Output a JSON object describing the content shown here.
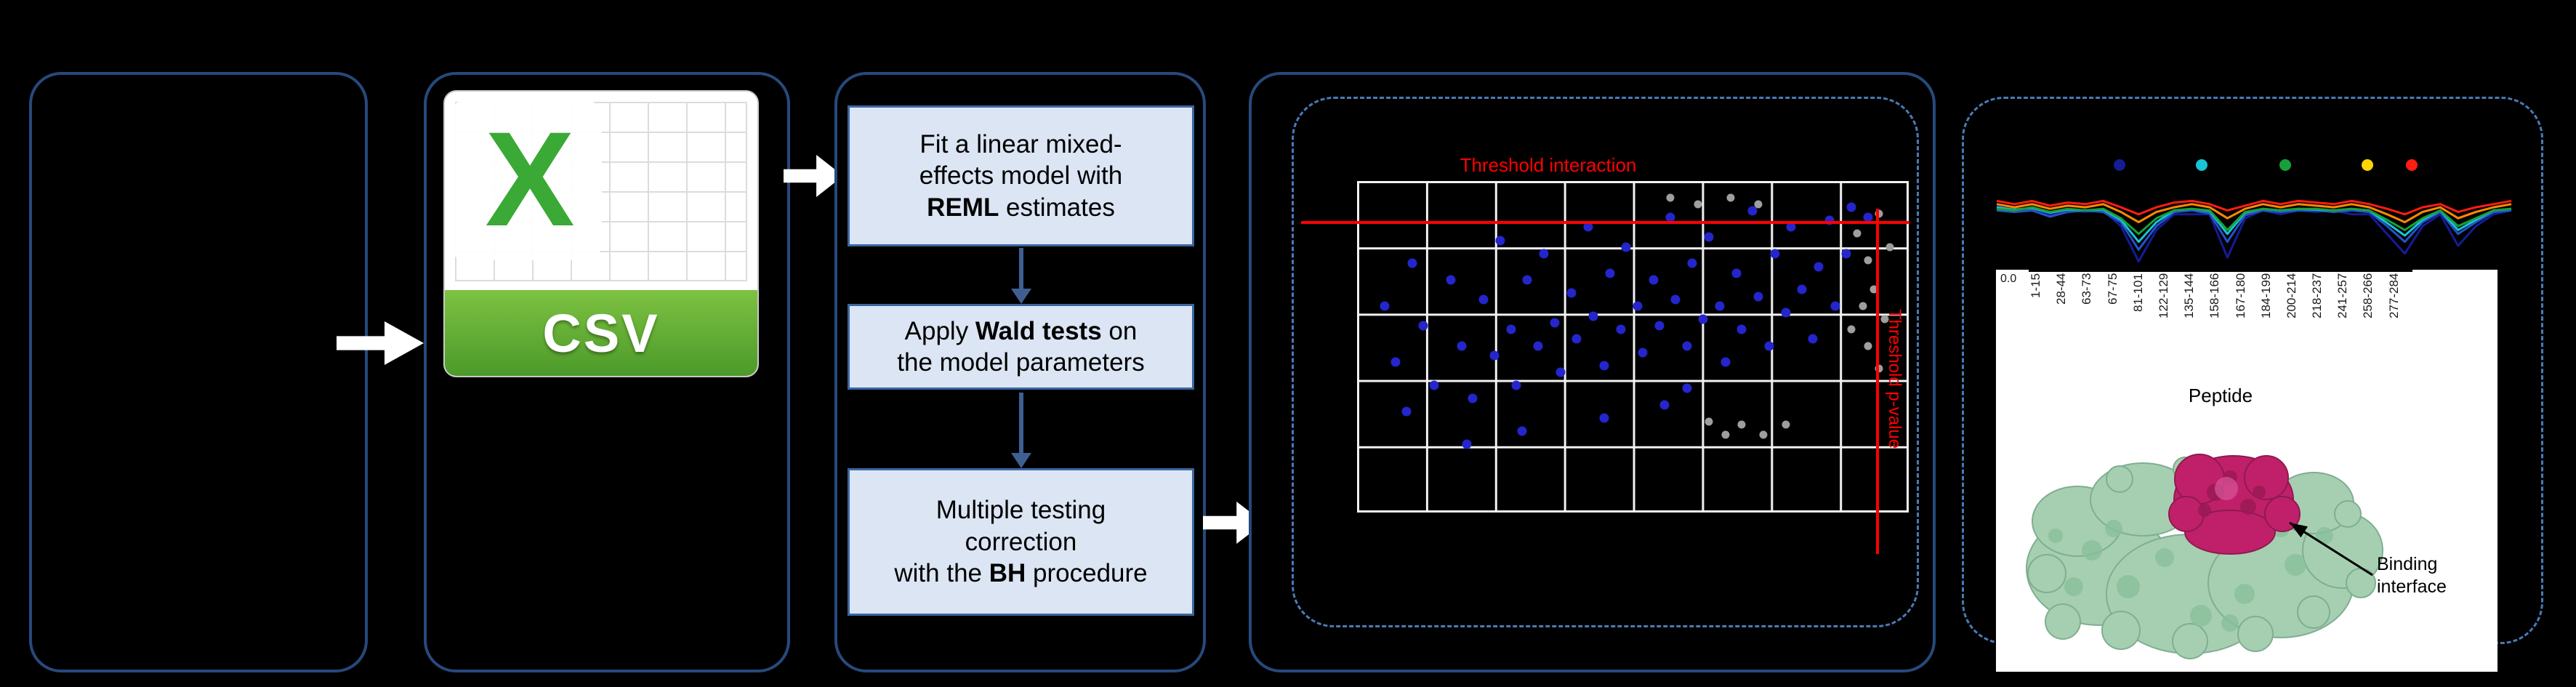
{
  "colors": {
    "panel_border": "#27497c",
    "dashed_border": "#4a7ab5",
    "box_fill": "#dbe5f3",
    "box_border": "#3a66a0",
    "flow_arrow": "#ffffff",
    "down_arrow": "#3f5f93",
    "excel_green": "#3aa935",
    "banner_top": "#7dc242",
    "banner_bottom": "#4c9a2a",
    "threshold_red": "#ff0000",
    "grid_line": "#f2f2f2",
    "protein_green": "#a6cfb2",
    "protein_green_dark": "#7fae90",
    "protein_magenta": "#c02069"
  },
  "flow": {
    "csv_icon": {
      "logo_letter": "X",
      "file_type_label": "CSV"
    },
    "boxes": {
      "box1": {
        "line1": "Fit a linear mixed-",
        "line2": "effects model with",
        "bold3": "REML",
        "rest3": " estimates"
      },
      "box2": {
        "pre1": "Apply ",
        "bold1": "Wald tests",
        "post1": " on",
        "line2": "the model parameters"
      },
      "box3": {
        "line1": "Multiple testing",
        "line2": "correction",
        "pre3": "with the ",
        "bold3": "BH",
        "rest3": " procedure"
      }
    }
  },
  "volcano": {
    "threshold_interaction_label": "Threshold interaction",
    "threshold_pvalue_label": "Threshold p-value"
  },
  "profile": {
    "y_tick": "0.0",
    "peptides": [
      "1-15",
      "28-44",
      "63-73",
      "67-75",
      "81-101",
      "122-129",
      "135-144",
      "158-166",
      "167-180",
      "184-199",
      "200-214",
      "218-237",
      "241-257",
      "258-266",
      "277-284"
    ],
    "axis_label": "Peptide",
    "binding_line1": "Binding",
    "binding_line2": "interface"
  },
  "chart_data": [
    {
      "type": "scatter",
      "title": "",
      "xlabel": "",
      "ylabel": "",
      "grid": true,
      "coords_note": "points given as fractions of plot area, y measured from top",
      "thresholds": {
        "horizontal_label": "Threshold interaction",
        "horizontal_y_fraction": 0.124,
        "vertical_label": "Threshold p-value",
        "vertical_x_fraction": 0.943
      },
      "series": [
        {
          "name": "significant",
          "color": "#2525cd",
          "size": "normal",
          "points": [
            [
              0.05,
              0.38
            ],
            [
              0.07,
              0.55
            ],
            [
              0.09,
              0.7
            ],
            [
              0.12,
              0.44
            ],
            [
              0.14,
              0.62
            ],
            [
              0.17,
              0.3
            ],
            [
              0.19,
              0.5
            ],
            [
              0.21,
              0.66
            ],
            [
              0.23,
              0.36
            ],
            [
              0.25,
              0.53
            ],
            [
              0.26,
              0.18
            ],
            [
              0.28,
              0.45
            ],
            [
              0.29,
              0.62
            ],
            [
              0.31,
              0.3
            ],
            [
              0.33,
              0.5
            ],
            [
              0.34,
              0.22
            ],
            [
              0.36,
              0.43
            ],
            [
              0.37,
              0.58
            ],
            [
              0.39,
              0.34
            ],
            [
              0.4,
              0.48
            ],
            [
              0.42,
              0.14
            ],
            [
              0.43,
              0.41
            ],
            [
              0.45,
              0.56
            ],
            [
              0.46,
              0.28
            ],
            [
              0.48,
              0.45
            ],
            [
              0.49,
              0.2
            ],
            [
              0.51,
              0.38
            ],
            [
              0.52,
              0.52
            ],
            [
              0.54,
              0.3
            ],
            [
              0.55,
              0.44
            ],
            [
              0.57,
              0.11
            ],
            [
              0.58,
              0.36
            ],
            [
              0.6,
              0.5
            ],
            [
              0.61,
              0.25
            ],
            [
              0.63,
              0.42
            ],
            [
              0.64,
              0.17
            ],
            [
              0.66,
              0.38
            ],
            [
              0.67,
              0.55
            ],
            [
              0.69,
              0.28
            ],
            [
              0.7,
              0.45
            ],
            [
              0.72,
              0.09
            ],
            [
              0.73,
              0.35
            ],
            [
              0.75,
              0.5
            ],
            [
              0.76,
              0.22
            ],
            [
              0.78,
              0.4
            ],
            [
              0.79,
              0.14
            ],
            [
              0.81,
              0.33
            ],
            [
              0.83,
              0.48
            ],
            [
              0.84,
              0.26
            ],
            [
              0.86,
              0.12
            ],
            [
              0.87,
              0.38
            ],
            [
              0.89,
              0.22
            ],
            [
              0.9,
              0.08
            ],
            [
              0.93,
              0.11
            ],
            [
              0.3,
              0.76
            ],
            [
              0.45,
              0.72
            ],
            [
              0.56,
              0.68
            ],
            [
              0.2,
              0.8
            ],
            [
              0.1,
              0.25
            ],
            [
              0.6,
              0.63
            ]
          ]
        },
        {
          "name": "not-significant",
          "color": "#9e9e9e",
          "size": "small",
          "points": [
            [
              0.91,
              0.16
            ],
            [
              0.93,
              0.24
            ],
            [
              0.95,
              0.1
            ],
            [
              0.94,
              0.33
            ],
            [
              0.96,
              0.42
            ],
            [
              0.93,
              0.5
            ],
            [
              0.95,
              0.57
            ],
            [
              0.92,
              0.38
            ],
            [
              0.97,
              0.2
            ],
            [
              0.9,
              0.45
            ],
            [
              0.57,
              0.05
            ],
            [
              0.62,
              0.07
            ],
            [
              0.68,
              0.05
            ],
            [
              0.73,
              0.07
            ],
            [
              0.64,
              0.73
            ],
            [
              0.67,
              0.77
            ],
            [
              0.7,
              0.74
            ],
            [
              0.74,
              0.77
            ],
            [
              0.78,
              0.74
            ]
          ]
        }
      ]
    },
    {
      "type": "line",
      "title": "",
      "xlabel": "Peptide",
      "ylabel": "",
      "categories": [
        "1-15",
        "28-44",
        "63-73",
        "67-75",
        "81-101",
        "122-129",
        "135-144",
        "158-166",
        "167-180",
        "184-199",
        "200-214",
        "218-237",
        "241-257",
        "258-266",
        "277-284"
      ],
      "values_note": "relative intensity depth per sampled position, 0 = top baseline, 1 = deepest dip",
      "series": [
        {
          "name": "navy",
          "color": "#141c96",
          "values": [
            0.25,
            0.3,
            0.28,
            0.35,
            0.3,
            0.32,
            0.3,
            0.5,
            0.95,
            0.55,
            0.35,
            0.35,
            0.35,
            0.9,
            0.4,
            0.3,
            0.35,
            0.3,
            0.32,
            0.3,
            0.35,
            0.35,
            0.6,
            0.85,
            0.5,
            0.35,
            0.75,
            0.5,
            0.35,
            0.3
          ]
        },
        {
          "name": "blue",
          "color": "#2553c8",
          "values": [
            0.3,
            0.32,
            0.3,
            0.38,
            0.32,
            0.3,
            0.32,
            0.45,
            0.8,
            0.5,
            0.32,
            0.3,
            0.34,
            0.7,
            0.36,
            0.3,
            0.32,
            0.3,
            0.3,
            0.32,
            0.3,
            0.32,
            0.5,
            0.7,
            0.45,
            0.32,
            0.6,
            0.45,
            0.32,
            0.3
          ]
        },
        {
          "name": "cyan",
          "color": "#19c3d6",
          "values": [
            0.26,
            0.29,
            0.27,
            0.33,
            0.29,
            0.3,
            0.29,
            0.42,
            0.7,
            0.45,
            0.3,
            0.28,
            0.31,
            0.6,
            0.33,
            0.28,
            0.3,
            0.28,
            0.29,
            0.3,
            0.28,
            0.3,
            0.46,
            0.62,
            0.42,
            0.3,
            0.55,
            0.42,
            0.3,
            0.28
          ]
        },
        {
          "name": "green",
          "color": "#17a03a",
          "values": [
            0.28,
            0.3,
            0.26,
            0.32,
            0.28,
            0.3,
            0.28,
            0.4,
            0.6,
            0.4,
            0.3,
            0.28,
            0.3,
            0.55,
            0.32,
            0.28,
            0.3,
            0.28,
            0.28,
            0.3,
            0.28,
            0.3,
            0.42,
            0.55,
            0.4,
            0.3,
            0.5,
            0.4,
            0.3,
            0.28
          ]
        },
        {
          "name": "orange",
          "color": "#ff8a00",
          "values": [
            0.22,
            0.26,
            0.22,
            0.28,
            0.24,
            0.26,
            0.22,
            0.32,
            0.45,
            0.32,
            0.26,
            0.22,
            0.26,
            0.4,
            0.28,
            0.22,
            0.26,
            0.22,
            0.24,
            0.26,
            0.22,
            0.26,
            0.35,
            0.45,
            0.32,
            0.26,
            0.4,
            0.32,
            0.26,
            0.22
          ]
        },
        {
          "name": "red",
          "color": "#ff1d12",
          "values": [
            0.18,
            0.22,
            0.18,
            0.24,
            0.2,
            0.22,
            0.18,
            0.26,
            0.35,
            0.26,
            0.2,
            0.18,
            0.22,
            0.3,
            0.24,
            0.18,
            0.22,
            0.18,
            0.2,
            0.22,
            0.18,
            0.22,
            0.28,
            0.35,
            0.26,
            0.22,
            0.32,
            0.26,
            0.22,
            0.18
          ]
        }
      ],
      "legend_markers": [
        {
          "color": "#141c96",
          "x": 0.245
        },
        {
          "color": "#19c3d6",
          "x": 0.4
        },
        {
          "color": "#17a03a",
          "x": 0.56
        },
        {
          "color": "#ffd400",
          "x": 0.715
        },
        {
          "color": "#ff1d12",
          "x": 0.8
        }
      ],
      "legend_position": "top"
    }
  ]
}
